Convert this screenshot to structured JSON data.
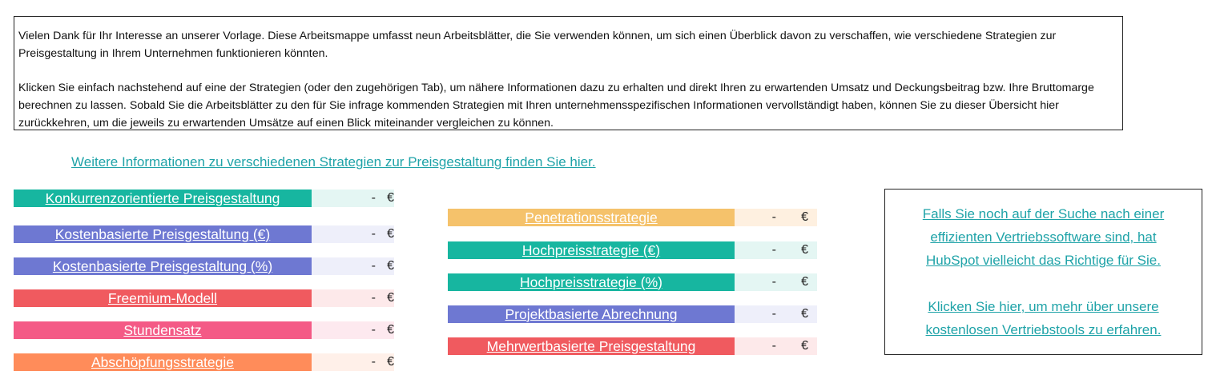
{
  "intro": {
    "paragraph1": "Vielen Dank für Ihr Interesse an unserer Vorlage. Diese Arbeitsmappe umfasst neun Arbeitsblätter, die Sie verwenden können, um sich einen Überblick davon zu verschaffen, wie verschiedene Strategien zur Preisgestaltung in Ihrem Unternehmen funktionieren könnten.",
    "paragraph2": "Klicken Sie einfach nachstehend auf eine der Strategien (oder den zugehörigen Tab), um nähere Informationen dazu zu erhalten und direkt Ihren zu erwartenden Umsatz und Deckungsbeitrag bzw. Ihre Bruttomarge berechnen zu lassen. Sobald Sie die Arbeitsblätter zu den für Sie infrage kommenden Strategien mit Ihren unternehmensspezifischen Informationen vervollständigt haben, können Sie zu dieser Übersicht hier zurückkehren, um die jeweils zu erwartenden Umsätze auf einen Blick miteinander vergleichen zu können."
  },
  "info_link": "Weitere Informationen zu verschiedenen Strategien zur Preisgestaltung finden Sie hier.",
  "strategies": [
    {
      "label": "Konkurrenzorientierte Preisgestaltung",
      "value": "-",
      "currency": "€",
      "color": "#17b6a0",
      "bg": "#e4f6f3"
    },
    {
      "label": "Kostenbasierte Preisgestaltung (€)",
      "value": "-",
      "currency": "€",
      "color": "#6e78d2",
      "bg": "#eeeffa"
    },
    {
      "label": "Kostenbasierte Preisgestaltung (%)",
      "value": "-",
      "currency": "€",
      "color": "#6e78d2",
      "bg": "#eeeffa"
    },
    {
      "label": "Freemium-Modell",
      "value": "-",
      "currency": "€",
      "color": "#f05a5f",
      "bg": "#fde9ea"
    },
    {
      "label": "Stundensatz",
      "value": "-",
      "currency": "€",
      "color": "#f45a86",
      "bg": "#fde9ef"
    },
    {
      "label": "Abschöpfungsstrategie",
      "value": "-",
      "currency": "€",
      "color": "#ff8c5a",
      "bg": "#fff0e9"
    },
    {
      "label": "Penetrationsstrategie",
      "value": "-",
      "currency": "€",
      "color": "#f5c26b",
      "bg": "#fef0e0"
    },
    {
      "label": "Hochpreisstrategie (€)",
      "value": "-",
      "currency": "€",
      "color": "#17b6a0",
      "bg": "#e4f6f3"
    },
    {
      "label": "Hochpreisstrategie (%)",
      "value": "-",
      "currency": "€",
      "color": "#17b6a0",
      "bg": "#e4f6f3"
    },
    {
      "label": "Projektbasierte Abrechnung",
      "value": "-",
      "currency": "€",
      "color": "#6e78d2",
      "bg": "#eeeffa"
    },
    {
      "label": "Mehrwertbasierte Preisgestaltung",
      "value": "-",
      "currency": "€",
      "color": "#f05a5f",
      "bg": "#fde9ea"
    }
  ],
  "promo": {
    "line1": "Falls Sie noch auf der Suche nach einer",
    "line2": "effizienten Vertriebssoftware sind, hat",
    "line3": "HubSpot vielleicht das Richtige für Sie.",
    "line4": "Klicken Sie hier, um mehr über unsere",
    "line5": "kostenlosen Vertriebstools zu erfahren."
  }
}
